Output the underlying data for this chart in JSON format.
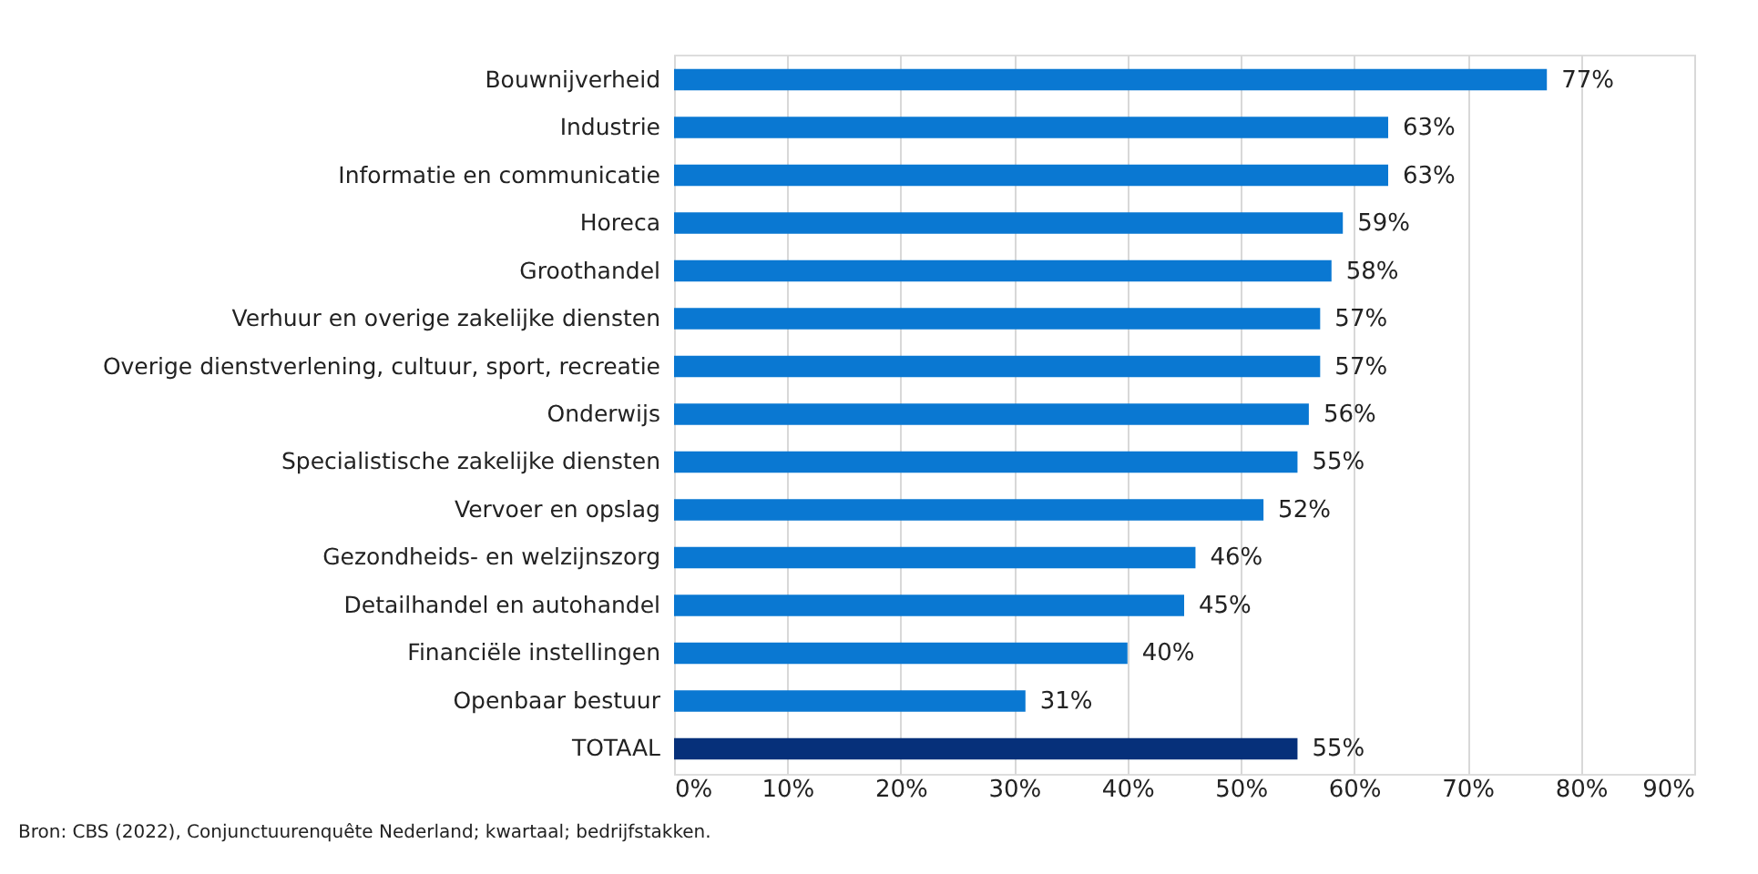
{
  "chart_data": {
    "type": "bar",
    "orientation": "horizontal",
    "categories": [
      "Bouwnijverheid",
      "Industrie",
      "Informatie en communicatie",
      "Horeca",
      "Groothandel",
      "Verhuur en overige zakelijke diensten",
      "Overige dienstverlening, cultuur, sport, recreatie",
      "Onderwijs",
      "Specialistische zakelijke diensten",
      "Vervoer en opslag",
      "Gezondheids- en welzijnszorg",
      "Detailhandel en autohandel",
      "Financiële instellingen",
      "Openbaar bestuur",
      "TOTAAL"
    ],
    "values": [
      77,
      63,
      63,
      59,
      58,
      57,
      57,
      56,
      55,
      52,
      46,
      45,
      40,
      31,
      55
    ],
    "value_labels": [
      "77%",
      "63%",
      "63%",
      "59%",
      "58%",
      "57%",
      "57%",
      "56%",
      "55%",
      "52%",
      "46%",
      "45%",
      "40%",
      "31%",
      "55%"
    ],
    "colors": [
      "#0a78d2",
      "#0a78d2",
      "#0a78d2",
      "#0a78d2",
      "#0a78d2",
      "#0a78d2",
      "#0a78d2",
      "#0a78d2",
      "#0a78d2",
      "#0a78d2",
      "#0a78d2",
      "#0a78d2",
      "#0a78d2",
      "#0a78d2",
      "#06307a"
    ],
    "xlim": [
      0,
      90
    ],
    "xticks": [
      {
        "value": 0,
        "label": "0%"
      },
      {
        "value": 10,
        "label": "10%"
      },
      {
        "value": 20,
        "label": "20%"
      },
      {
        "value": 30,
        "label": "30%"
      },
      {
        "value": 40,
        "label": "40%"
      },
      {
        "value": 50,
        "label": "50%"
      },
      {
        "value": 60,
        "label": "60%"
      },
      {
        "value": 70,
        "label": "70%"
      },
      {
        "value": 80,
        "label": "80%"
      },
      {
        "value": 90,
        "label": "90%"
      }
    ],
    "grid": "x",
    "annotations": [
      "Bron: CBS (2022), Conjunctuurenquête Nederland; kwartaal; bedrijfstakken."
    ]
  }
}
